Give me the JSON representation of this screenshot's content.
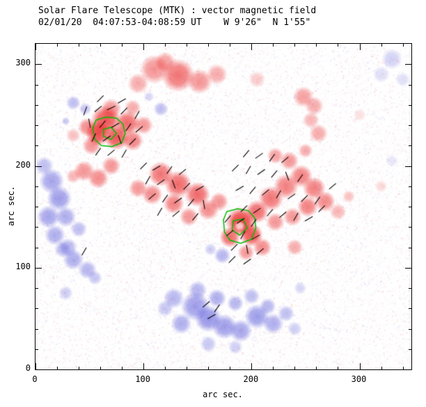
{
  "chart_data": {
    "type": "heatmap",
    "title": "Solar Flare Telescope (MTK) : vector magnetic field",
    "subtitle": "02/01/20  04:07:53-04:08:59 UT    W 9'26\"  N 1'55\"",
    "xlabel": "arc sec.",
    "ylabel": "arc sec.",
    "xlim": [
      0,
      348
    ],
    "ylim": [
      0,
      320
    ],
    "xticks": [
      0,
      100,
      200,
      300
    ],
    "yticks": [
      0,
      100,
      200,
      300
    ],
    "minor_tick_step": 20,
    "colors": {
      "positive_polarity": "#eb2828",
      "negative_polarity": "#5a5adc",
      "contour": "#00bb00",
      "vector": "#000000",
      "background": "#ffffff",
      "axis": "#000000"
    },
    "red_regions": [
      [
        110,
        295,
        14,
        0.5
      ],
      [
        132,
        289,
        16,
        0.65
      ],
      [
        152,
        283,
        12,
        0.5
      ],
      [
        95,
        281,
        10,
        0.4
      ],
      [
        168,
        290,
        10,
        0.4
      ],
      [
        120,
        302,
        10,
        0.45
      ],
      [
        248,
        268,
        10,
        0.45
      ],
      [
        258,
        259,
        9,
        0.4
      ],
      [
        262,
        232,
        9,
        0.4
      ],
      [
        255,
        245,
        8,
        0.35
      ],
      [
        65,
        245,
        14,
        0.8
      ],
      [
        58,
        232,
        12,
        0.85
      ],
      [
        75,
        228,
        12,
        0.8
      ],
      [
        85,
        242,
        12,
        0.7
      ],
      [
        48,
        238,
        9,
        0.55
      ],
      [
        52,
        220,
        9,
        0.5
      ],
      [
        90,
        225,
        10,
        0.6
      ],
      [
        100,
        240,
        9,
        0.5
      ],
      [
        70,
        256,
        10,
        0.5
      ],
      [
        90,
        257,
        8,
        0.4
      ],
      [
        35,
        230,
        7,
        0.3
      ],
      [
        45,
        195,
        10,
        0.5
      ],
      [
        58,
        188,
        10,
        0.55
      ],
      [
        35,
        190,
        7,
        0.35
      ],
      [
        70,
        200,
        9,
        0.5
      ],
      [
        116,
        192,
        12,
        0.65
      ],
      [
        132,
        182,
        13,
        0.7
      ],
      [
        150,
        172,
        12,
        0.7
      ],
      [
        128,
        163,
        10,
        0.6
      ],
      [
        160,
        157,
        10,
        0.55
      ],
      [
        108,
        172,
        10,
        0.55
      ],
      [
        95,
        178,
        9,
        0.5
      ],
      [
        142,
        150,
        9,
        0.5
      ],
      [
        170,
        165,
        9,
        0.5
      ],
      [
        190,
        145,
        14,
        0.9
      ],
      [
        200,
        132,
        11,
        0.8
      ],
      [
        180,
        130,
        10,
        0.7
      ],
      [
        205,
        155,
        11,
        0.7
      ],
      [
        218,
        168,
        12,
        0.65
      ],
      [
        232,
        180,
        12,
        0.6
      ],
      [
        246,
        190,
        11,
        0.6
      ],
      [
        258,
        178,
        11,
        0.6
      ],
      [
        268,
        165,
        10,
        0.55
      ],
      [
        252,
        160,
        10,
        0.6
      ],
      [
        238,
        150,
        9,
        0.5
      ],
      [
        222,
        145,
        9,
        0.5
      ],
      [
        210,
        120,
        9,
        0.55
      ],
      [
        195,
        115,
        8,
        0.5
      ],
      [
        235,
        205,
        9,
        0.5
      ],
      [
        222,
        210,
        8,
        0.45
      ],
      [
        250,
        215,
        7,
        0.4
      ],
      [
        280,
        155,
        8,
        0.35
      ],
      [
        290,
        170,
        6,
        0.3
      ],
      [
        240,
        120,
        8,
        0.4
      ],
      [
        205,
        285,
        8,
        0.25
      ],
      [
        320,
        180,
        6,
        0.18
      ],
      [
        300,
        250,
        6,
        0.15
      ]
    ],
    "blue_regions": [
      [
        15,
        185,
        12,
        0.55
      ],
      [
        22,
        168,
        12,
        0.6
      ],
      [
        12,
        150,
        11,
        0.55
      ],
      [
        28,
        150,
        10,
        0.5
      ],
      [
        18,
        132,
        10,
        0.5
      ],
      [
        30,
        120,
        9,
        0.45
      ],
      [
        8,
        200,
        9,
        0.4
      ],
      [
        40,
        138,
        8,
        0.4
      ],
      [
        35,
        108,
        10,
        0.5
      ],
      [
        48,
        98,
        9,
        0.45
      ],
      [
        25,
        118,
        8,
        0.4
      ],
      [
        55,
        90,
        7,
        0.35
      ],
      [
        28,
        75,
        7,
        0.3
      ],
      [
        148,
        62,
        14,
        0.6
      ],
      [
        160,
        50,
        13,
        0.65
      ],
      [
        175,
        42,
        12,
        0.6
      ],
      [
        190,
        38,
        11,
        0.55
      ],
      [
        205,
        52,
        12,
        0.6
      ],
      [
        220,
        45,
        10,
        0.5
      ],
      [
        135,
        45,
        10,
        0.5
      ],
      [
        128,
        70,
        10,
        0.45
      ],
      [
        150,
        78,
        9,
        0.45
      ],
      [
        168,
        70,
        9,
        0.5
      ],
      [
        185,
        65,
        8,
        0.45
      ],
      [
        200,
        72,
        8,
        0.4
      ],
      [
        215,
        62,
        8,
        0.45
      ],
      [
        232,
        55,
        8,
        0.4
      ],
      [
        240,
        40,
        7,
        0.3
      ],
      [
        120,
        60,
        8,
        0.35
      ],
      [
        160,
        25,
        8,
        0.35
      ],
      [
        185,
        22,
        7,
        0.3
      ],
      [
        173,
        112,
        8,
        0.45
      ],
      [
        162,
        118,
        6,
        0.3
      ],
      [
        35,
        262,
        7,
        0.4
      ],
      [
        46,
        256,
        6,
        0.35
      ],
      [
        116,
        256,
        7,
        0.4
      ],
      [
        105,
        268,
        5,
        0.25
      ],
      [
        28,
        244,
        4,
        0.35
      ],
      [
        330,
        305,
        10,
        0.28
      ],
      [
        320,
        290,
        8,
        0.2
      ],
      [
        340,
        285,
        7,
        0.2
      ],
      [
        245,
        80,
        6,
        0.25
      ],
      [
        330,
        205,
        6,
        0.15
      ]
    ],
    "white_regions": [
      [
        189,
        141,
        5,
        0.75
      ]
    ],
    "contours": [
      {
        "points": [
          [
            56,
            245
          ],
          [
            65,
            248
          ],
          [
            75,
            247
          ],
          [
            81,
            241
          ],
          [
            83,
            232
          ],
          [
            80,
            223
          ],
          [
            71,
            219
          ],
          [
            61,
            220
          ],
          [
            55,
            226
          ],
          [
            53,
            237
          ]
        ]
      },
      {
        "points": [
          [
            63,
            236
          ],
          [
            70,
            238
          ],
          [
            75,
            232
          ],
          [
            70,
            226
          ],
          [
            63,
            229
          ]
        ]
      },
      {
        "points": [
          [
            177,
            155
          ],
          [
            187,
            158
          ],
          [
            197,
            156
          ],
          [
            203,
            149
          ],
          [
            204,
            139
          ],
          [
            200,
            128
          ],
          [
            190,
            124
          ],
          [
            180,
            127
          ],
          [
            175,
            135
          ],
          [
            174,
            147
          ]
        ]
      },
      {
        "points": [
          [
            183,
            146
          ],
          [
            192,
            148
          ],
          [
            196,
            139
          ],
          [
            189,
            132
          ],
          [
            182,
            137
          ]
        ]
      }
    ],
    "vectors": [
      [
        46,
        254,
        70
      ],
      [
        58,
        256,
        40
      ],
      [
        70,
        257,
        25
      ],
      [
        82,
        254,
        45
      ],
      [
        94,
        250,
        60
      ],
      [
        50,
        242,
        100
      ],
      [
        62,
        241,
        50
      ],
      [
        74,
        240,
        30
      ],
      [
        86,
        238,
        55
      ],
      [
        96,
        236,
        40
      ],
      [
        54,
        228,
        65
      ],
      [
        66,
        227,
        35
      ],
      [
        78,
        226,
        110
      ],
      [
        90,
        224,
        45
      ],
      [
        58,
        214,
        55
      ],
      [
        70,
        213,
        40
      ],
      [
        82,
        212,
        60
      ],
      [
        60,
        266,
        45
      ],
      [
        80,
        264,
        30
      ],
      [
        100,
        200,
        45
      ],
      [
        112,
        198,
        30
      ],
      [
        124,
        196,
        55
      ],
      [
        136,
        194,
        40
      ],
      [
        104,
        186,
        60
      ],
      [
        116,
        184,
        35
      ],
      [
        128,
        182,
        110
      ],
      [
        140,
        180,
        45
      ],
      [
        152,
        178,
        30
      ],
      [
        108,
        170,
        40
      ],
      [
        120,
        168,
        55
      ],
      [
        132,
        166,
        35
      ],
      [
        144,
        164,
        50
      ],
      [
        156,
        162,
        100
      ],
      [
        115,
        155,
        60
      ],
      [
        130,
        153,
        40
      ],
      [
        148,
        150,
        50
      ],
      [
        195,
        212,
        50
      ],
      [
        207,
        210,
        35
      ],
      [
        219,
        208,
        55
      ],
      [
        231,
        206,
        40
      ],
      [
        185,
        198,
        45
      ],
      [
        197,
        196,
        60
      ],
      [
        209,
        194,
        35
      ],
      [
        221,
        192,
        50
      ],
      [
        233,
        190,
        110
      ],
      [
        245,
        188,
        55
      ],
      [
        189,
        178,
        30
      ],
      [
        201,
        176,
        50
      ],
      [
        213,
        174,
        40
      ],
      [
        225,
        172,
        60
      ],
      [
        237,
        170,
        35
      ],
      [
        249,
        168,
        45
      ],
      [
        261,
        166,
        55
      ],
      [
        193,
        158,
        45
      ],
      [
        205,
        156,
        35
      ],
      [
        217,
        154,
        50
      ],
      [
        229,
        152,
        40
      ],
      [
        241,
        150,
        60
      ],
      [
        253,
        148,
        30
      ],
      [
        265,
        158,
        45
      ],
      [
        275,
        180,
        40
      ],
      [
        178,
        148,
        50
      ],
      [
        190,
        146,
        35
      ],
      [
        202,
        144,
        55
      ],
      [
        180,
        134,
        40
      ],
      [
        192,
        132,
        60
      ],
      [
        204,
        130,
        30
      ],
      [
        184,
        120,
        45
      ],
      [
        196,
        118,
        100
      ],
      [
        208,
        116,
        40
      ],
      [
        182,
        108,
        45
      ],
      [
        196,
        106,
        35
      ],
      [
        45,
        116,
        60
      ],
      [
        158,
        64,
        40
      ],
      [
        168,
        60,
        55
      ],
      [
        163,
        52,
        30
      ]
    ],
    "noise": {
      "seed": 42,
      "count": 26000,
      "max_alpha": 0.13
    }
  }
}
